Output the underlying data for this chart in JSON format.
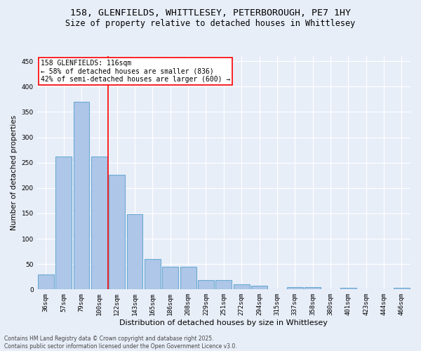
{
  "title_line1": "158, GLENFIELDS, WHITTLESEY, PETERBOROUGH, PE7 1HY",
  "title_line2": "Size of property relative to detached houses in Whittlesey",
  "xlabel": "Distribution of detached houses by size in Whittlesey",
  "ylabel": "Number of detached properties",
  "categories": [
    "36sqm",
    "57sqm",
    "79sqm",
    "100sqm",
    "122sqm",
    "143sqm",
    "165sqm",
    "186sqm",
    "208sqm",
    "229sqm",
    "251sqm",
    "272sqm",
    "294sqm",
    "315sqm",
    "337sqm",
    "358sqm",
    "380sqm",
    "401sqm",
    "423sqm",
    "444sqm",
    "466sqm"
  ],
  "values": [
    30,
    262,
    370,
    262,
    226,
    148,
    60,
    45,
    45,
    18,
    18,
    10,
    7,
    0,
    5,
    5,
    0,
    3,
    0,
    0,
    3
  ],
  "bar_color": "#aec6e8",
  "bar_edgecolor": "#6aaad4",
  "bar_linewidth": 0.8,
  "vline_x_index": 4,
  "vline_color": "red",
  "vline_linewidth": 1.2,
  "annotation_text": "158 GLENFIELDS: 116sqm\n← 58% of detached houses are smaller (836)\n42% of semi-detached houses are larger (600) →",
  "annotation_box_color": "white",
  "annotation_box_edgecolor": "red",
  "ylim": [
    0,
    460
  ],
  "yticks": [
    0,
    50,
    100,
    150,
    200,
    250,
    300,
    350,
    400,
    450
  ],
  "background_color": "#e8eef8",
  "plot_background": "#e8eef8",
  "grid_color": "white",
  "footnote": "Contains HM Land Registry data © Crown copyright and database right 2025.\nContains public sector information licensed under the Open Government Licence v3.0.",
  "title_fontsize": 9.5,
  "subtitle_fontsize": 8.5,
  "xlabel_fontsize": 8,
  "ylabel_fontsize": 7.5,
  "tick_fontsize": 6.5,
  "annotation_fontsize": 7,
  "footnote_fontsize": 5.5
}
